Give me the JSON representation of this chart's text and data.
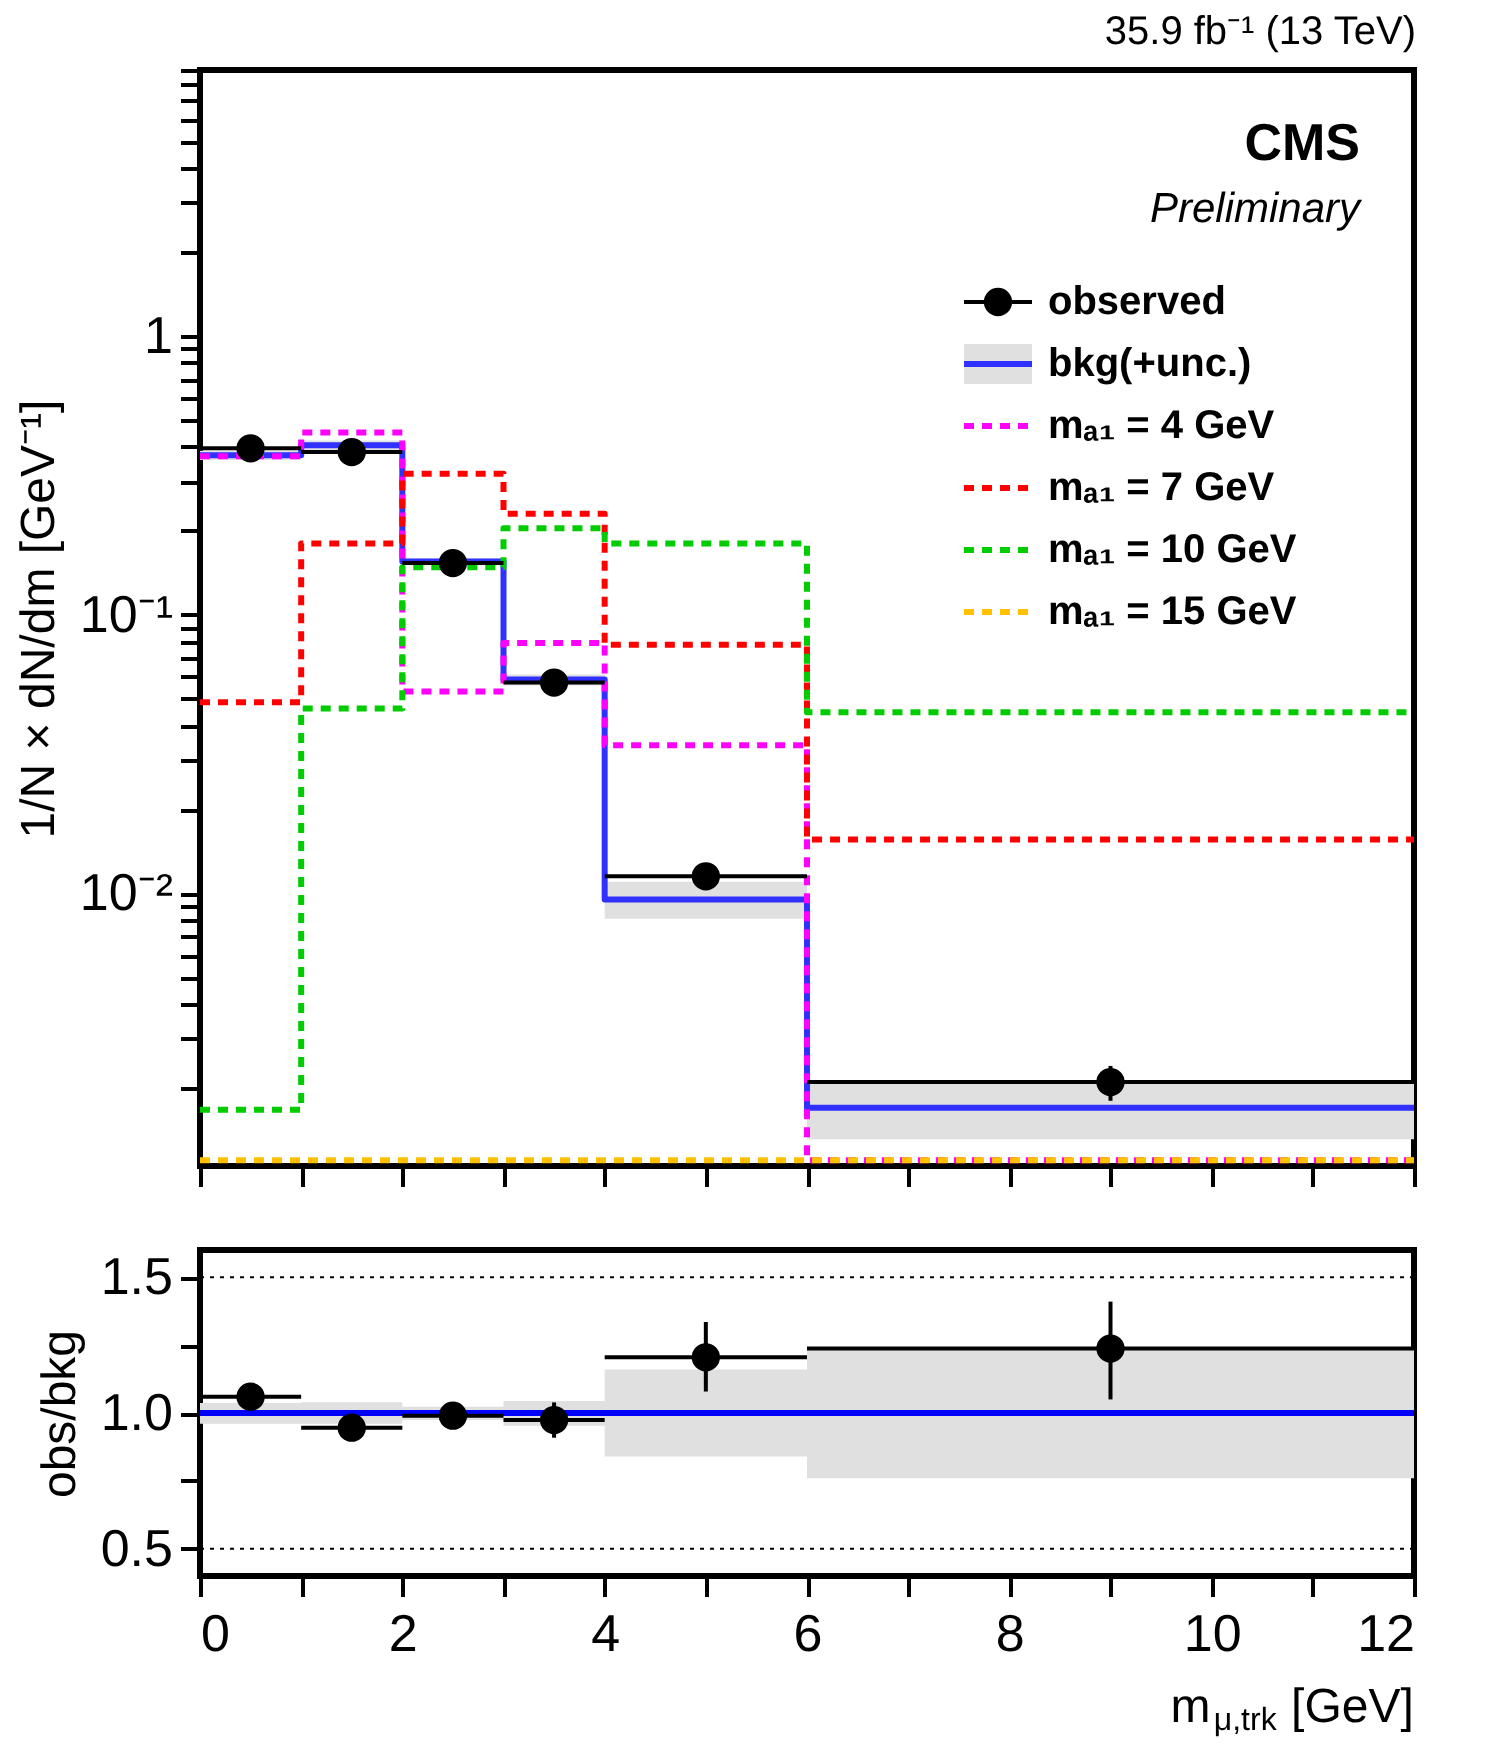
{
  "chart_data": [
    {
      "type": "histogram",
      "title": "35.9 fb⁻¹ (13 TeV)",
      "ylabel": "1/N × dN/dm [GeV⁻¹]",
      "annotations": [
        "CMS",
        "Preliminary"
      ],
      "bins": [
        0,
        1,
        2,
        3,
        4,
        6,
        12
      ],
      "log": "y",
      "legend": "top right",
      "tick_labels": "y",
      "grid": false,
      "xlim": [
        0,
        12
      ],
      "xticks": [
        {
          "value": 0,
          "label": null
        },
        {
          "value": 1,
          "label": null
        },
        {
          "value": 2,
          "label": null
        },
        {
          "value": 3,
          "label": null
        },
        {
          "value": 4,
          "label": null
        },
        {
          "value": 5,
          "label": null
        },
        {
          "value": 6,
          "label": null
        },
        {
          "value": 7,
          "label": null
        },
        {
          "value": 8,
          "label": null
        },
        {
          "value": 9,
          "label": null
        },
        {
          "value": 10,
          "label": null
        },
        {
          "value": 11,
          "label": null
        },
        {
          "value": 12,
          "label": null
        }
      ],
      "ylim": [
        0.00105,
        9
      ],
      "yticks": [
        {
          "value": 0.002,
          "label": null
        },
        {
          "value": 0.003,
          "label": null
        },
        {
          "value": 0.004,
          "label": null
        },
        {
          "value": 0.005,
          "label": null
        },
        {
          "value": 0.006,
          "label": null
        },
        {
          "value": 0.007,
          "label": null
        },
        {
          "value": 0.008,
          "label": null
        },
        {
          "value": 0.009,
          "label": null
        },
        {
          "value": 0.01,
          "label": "10⁻²"
        },
        {
          "value": 0.02,
          "label": null
        },
        {
          "value": 0.03,
          "label": null
        },
        {
          "value": 0.04,
          "label": null
        },
        {
          "value": 0.05,
          "label": null
        },
        {
          "value": 0.06,
          "label": null
        },
        {
          "value": 0.07,
          "label": null
        },
        {
          "value": 0.08,
          "label": null
        },
        {
          "value": 0.09,
          "label": null
        },
        {
          "value": 0.1,
          "label": "10⁻¹"
        },
        {
          "value": 0.2,
          "label": null
        },
        {
          "value": 0.3,
          "label": null
        },
        {
          "value": 0.4,
          "label": null
        },
        {
          "value": 0.5,
          "label": null
        },
        {
          "value": 0.6,
          "label": null
        },
        {
          "value": 0.7,
          "label": null
        },
        {
          "value": 0.8,
          "label": null
        },
        {
          "value": 0.9,
          "label": null
        },
        {
          "value": 1,
          "label": "1"
        },
        {
          "value": 2,
          "label": null
        },
        {
          "value": 3,
          "label": null
        },
        {
          "value": 4,
          "label": null
        },
        {
          "value": 5,
          "label": null
        },
        {
          "value": 6,
          "label": null
        },
        {
          "value": 7,
          "label": null
        },
        {
          "value": 8,
          "label": null
        },
        {
          "value": 9,
          "label": null
        }
      ],
      "series": [
        {
          "name": "observed",
          "type": "scatter",
          "marker": "circle",
          "color": "#000000",
          "x": [
            0.5,
            1.5,
            2.5,
            3.5,
            5,
            9
          ],
          "values": [
            0.395,
            0.383,
            0.153,
            0.057,
            0.0115,
            0.0021
          ],
          "xerrors": [
            0.5,
            0.5,
            0.5,
            0.5,
            1,
            3
          ],
          "errors": [
            null,
            null,
            null,
            null,
            0.0008,
            0.0003
          ]
        },
        {
          "name": "bkg(+unc.)",
          "type": "step",
          "color": "#3030ff",
          "x": [
            0,
            1,
            2,
            3,
            4,
            6,
            12
          ],
          "values": [
            0.373,
            0.405,
            0.155,
            0.0585,
            0.0095,
            0.0017,
            0.0017
          ],
          "lower": [
            0.359,
            0.389,
            0.151,
            0.0557,
            0.0081,
            0.00131,
            0.00131
          ],
          "upper": [
            0.387,
            0.421,
            0.159,
            0.061,
            0.011,
            0.0021,
            0.0021
          ]
        },
        {
          "name": "mₐ₁ = 4 GeV",
          "color": "#ff00ff",
          "line_style": "dashed",
          "values": [
            0.37,
            0.45,
            0.053,
            0.079,
            0.034,
            0.0011
          ]
        },
        {
          "name": "mₐ₁ = 7 GeV",
          "color": "#ff0000",
          "line_style": "dashed",
          "values": [
            0.0485,
            0.18,
            0.32,
            0.23,
            0.078,
            0.0156
          ]
        },
        {
          "name": "mₐ₁ = 10 GeV",
          "color": "#00cc00",
          "line_style": "dashed",
          "values": [
            0.00167,
            0.046,
            0.148,
            0.204,
            0.18,
            0.0446
          ]
        },
        {
          "name": "mₐ₁ = 15 GeV",
          "color": "#ffc000",
          "line_style": "dashed",
          "values": [
            0.0011,
            0.0011,
            0.0011,
            0.0011,
            0.0011,
            0.0011
          ]
        }
      ]
    },
    {
      "type": "histogram",
      "xlabel": "m$_{μ,trk}$ [GeV]",
      "ylabel": "obs/bkg",
      "grid": false,
      "xlim": [
        0,
        12
      ],
      "xticks": [
        0,
        {
          "value": 1,
          "label": null
        },
        2,
        {
          "value": 3,
          "label": null
        },
        4,
        {
          "value": 5,
          "label": null
        },
        6,
        {
          "value": 7,
          "label": null
        },
        8,
        {
          "value": 9,
          "label": null
        },
        10,
        {
          "value": 11,
          "label": null
        },
        12
      ],
      "ylim": [
        0.4,
        1.6
      ],
      "yticks": [
        {
          "value": 0.5,
          "label": "0.5"
        },
        {
          "value": 0.75,
          "label": null
        },
        {
          "value": 1,
          "label": "1.0"
        },
        {
          "value": 1.25,
          "label": null
        },
        {
          "value": 1.5,
          "label": "1.5"
        }
      ],
      "ref_lines": [
        {
          "axis": "y",
          "value": 0.5,
          "color": "#000000",
          "line_style": "dotted"
        },
        {
          "axis": "y",
          "value": 1.5,
          "color": "#000000",
          "line_style": "dotted"
        }
      ],
      "series": [
        {
          "type": "step",
          "color": "#0000ff",
          "x": [
            0,
            1,
            2,
            3,
            4,
            6,
            12
          ],
          "values": [
            1,
            1,
            1,
            1,
            1,
            1,
            1
          ],
          "lower": [
            0.96,
            0.96,
            0.974,
            0.953,
            0.84,
            0.76,
            0.76
          ],
          "upper": [
            1.037,
            1.04,
            1.023,
            1.044,
            1.16,
            1.237,
            1.237
          ]
        },
        {
          "type": "scatter",
          "marker": "circle",
          "color": "#000000",
          "x": [
            0.5,
            1.5,
            2.5,
            3.5,
            5,
            9
          ],
          "values": [
            1.06,
            0.946,
            0.99,
            0.974,
            1.205,
            1.237
          ],
          "xerrors": [
            0.5,
            0.5,
            0.5,
            0.5,
            1,
            3
          ],
          "errors": [
            null,
            null,
            null,
            0.065,
            [
              1.079,
              1.335
            ],
            [
              1.05,
              1.41
            ]
          ]
        }
      ]
    }
  ]
}
